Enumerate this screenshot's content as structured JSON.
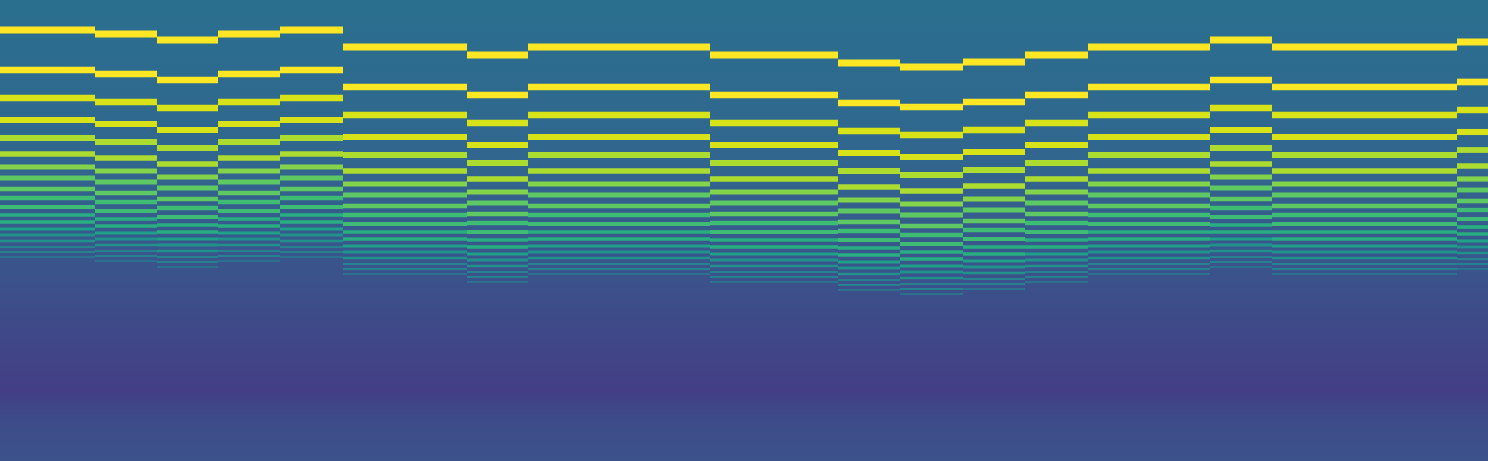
{
  "chart_data": {
    "type": "spectrogram",
    "xlim": [
      0,
      1488
    ],
    "ylim": [
      0,
      461
    ],
    "grid": false,
    "tick_labels": false,
    "notes": [
      {
        "start": 0,
        "end": 95,
        "harmonics": [
          431,
          391,
          363,
          341,
          323,
          307,
          294,
          283,
          272,
          263,
          254,
          246,
          239,
          232,
          226,
          220,
          214,
          209,
          204
        ]
      },
      {
        "start": 95,
        "end": 157,
        "harmonics": [
          427,
          387,
          359,
          337,
          319,
          303,
          290,
          279,
          268,
          259,
          250,
          242,
          235,
          228,
          222,
          216,
          210,
          205,
          200
        ]
      },
      {
        "start": 157,
        "end": 218,
        "harmonics": [
          421,
          381,
          353,
          331,
          313,
          297,
          284,
          273,
          262,
          253,
          244,
          236,
          229,
          222,
          216,
          210,
          204,
          199,
          194
        ]
      },
      {
        "start": 218,
        "end": 280,
        "harmonics": [
          427,
          387,
          359,
          337,
          319,
          303,
          290,
          279,
          268,
          259,
          250,
          242,
          235,
          228,
          222,
          216,
          210,
          205,
          200
        ]
      },
      {
        "start": 280,
        "end": 343,
        "harmonics": [
          431,
          391,
          363,
          341,
          323,
          307,
          294,
          283,
          272,
          263,
          254,
          246,
          239,
          232,
          226,
          220,
          214,
          209,
          204
        ]
      },
      {
        "start": 343,
        "end": 405,
        "harmonics": [
          414,
          374,
          346,
          324,
          306,
          290,
          277,
          266,
          255,
          246,
          237,
          229,
          222,
          215,
          209,
          203,
          197,
          192,
          187
        ]
      },
      {
        "start": 405,
        "end": 467,
        "harmonics": [
          414,
          374,
          346,
          324,
          306,
          290,
          277,
          266,
          255,
          246,
          237,
          229,
          222,
          215,
          209,
          203,
          197,
          192,
          187
        ]
      },
      {
        "start": 467,
        "end": 528,
        "harmonics": [
          406,
          366,
          338,
          316,
          298,
          282,
          269,
          258,
          247,
          238,
          229,
          221,
          214,
          207,
          201,
          195,
          189,
          184,
          179
        ]
      },
      {
        "start": 528,
        "end": 710,
        "harmonics": [
          414,
          374,
          346,
          324,
          306,
          290,
          277,
          266,
          255,
          246,
          237,
          229,
          222,
          215,
          209,
          203,
          197,
          192,
          187
        ]
      },
      {
        "start": 710,
        "end": 838,
        "harmonics": [
          406,
          366,
          338,
          316,
          298,
          282,
          269,
          258,
          247,
          238,
          229,
          221,
          214,
          207,
          201,
          195,
          189,
          184,
          179
        ]
      },
      {
        "start": 838,
        "end": 900,
        "harmonics": [
          398,
          358,
          330,
          308,
          290,
          274,
          261,
          250,
          239,
          230,
          221,
          213,
          206,
          199,
          193,
          187,
          181,
          176,
          171
        ]
      },
      {
        "start": 900,
        "end": 963,
        "harmonics": [
          394,
          354,
          326,
          304,
          286,
          270,
          257,
          246,
          235,
          226,
          217,
          209,
          202,
          195,
          189,
          183,
          177,
          172,
          167
        ]
      },
      {
        "start": 963,
        "end": 1025,
        "harmonics": [
          399,
          359,
          331,
          309,
          291,
          275,
          262,
          251,
          240,
          231,
          222,
          214,
          207,
          200,
          194,
          188,
          182,
          177,
          172
        ]
      },
      {
        "start": 1025,
        "end": 1088,
        "harmonics": [
          406,
          366,
          338,
          316,
          298,
          282,
          269,
          258,
          247,
          238,
          229,
          221,
          214,
          207,
          201,
          195,
          189,
          184,
          179
        ]
      },
      {
        "start": 1088,
        "end": 1210,
        "harmonics": [
          414,
          374,
          346,
          324,
          306,
          290,
          277,
          266,
          255,
          246,
          237,
          229,
          222,
          215,
          209,
          203,
          197,
          192,
          187
        ]
      },
      {
        "start": 1210,
        "end": 1272,
        "harmonics": [
          421,
          381,
          353,
          331,
          313,
          297,
          284,
          273,
          262,
          253,
          244,
          236,
          229,
          222,
          216,
          210,
          204,
          199,
          194
        ]
      },
      {
        "start": 1272,
        "end": 1457,
        "harmonics": [
          414,
          374,
          346,
          324,
          306,
          290,
          277,
          266,
          255,
          246,
          237,
          229,
          222,
          215,
          209,
          203,
          197,
          192,
          187
        ]
      },
      {
        "start": 1457,
        "end": 1488,
        "harmonics": [
          419,
          379,
          351,
          329,
          311,
          295,
          282,
          271,
          260,
          251,
          242,
          234,
          227,
          220,
          214,
          208,
          202,
          197,
          192
        ]
      }
    ]
  }
}
